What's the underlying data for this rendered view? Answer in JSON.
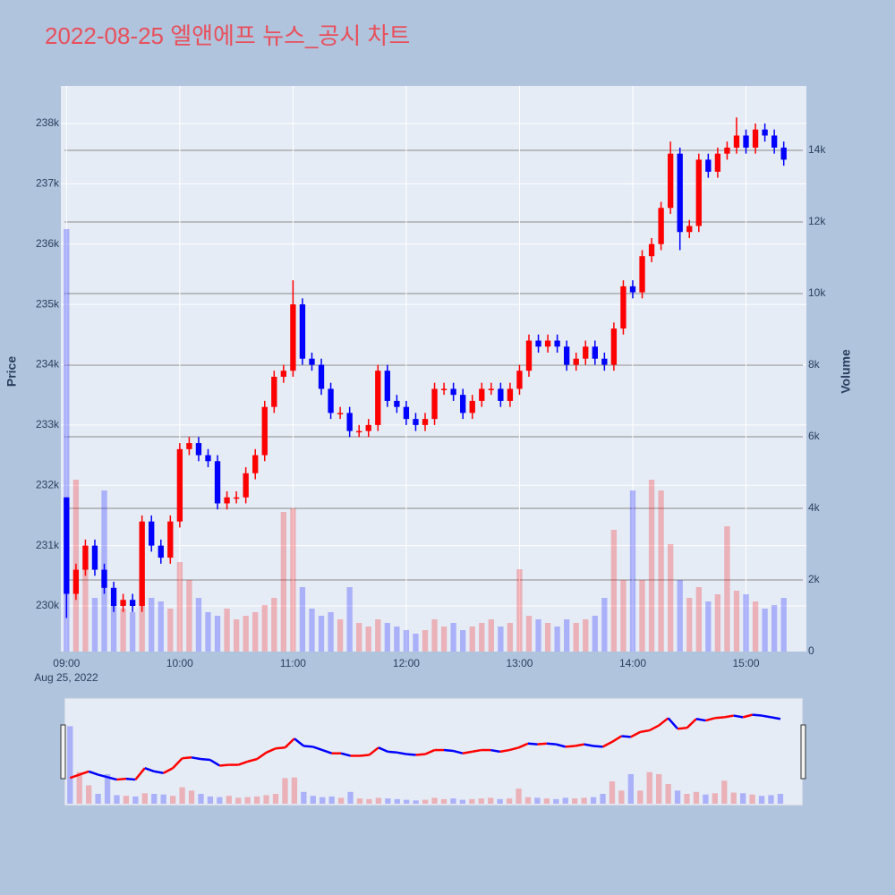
{
  "chart_data": {
    "type": "candlestick",
    "title": "2022-08-25 엘앤에프 뉴스_공시 차트",
    "y_label": "Price",
    "y2_label": "Volume",
    "x_date_label": "Aug 25, 2022",
    "up_color": "#ff0000",
    "down_color": "#0000ff",
    "xlim": [
      "2022-08-25 08:57",
      "2022-08-25 15:32"
    ],
    "xticks": [
      {
        "value": "2022-08-25 09:00",
        "label": "09:00"
      },
      {
        "value": "2022-08-25 10:00",
        "label": "10:00"
      },
      {
        "value": "2022-08-25 11:00",
        "label": "11:00"
      },
      {
        "value": "2022-08-25 12:00",
        "label": "12:00"
      },
      {
        "value": "2022-08-25 13:00",
        "label": "13:00"
      },
      {
        "value": "2022-08-25 14:00",
        "label": "14:00"
      },
      {
        "value": "2022-08-25 15:00",
        "label": "15:00"
      }
    ],
    "ylim": [
      229243,
      238623
    ],
    "yticks": [
      {
        "value": 230000,
        "label": "230k"
      },
      {
        "value": 231000,
        "label": "231k"
      },
      {
        "value": 232000,
        "label": "232k"
      },
      {
        "value": 233000,
        "label": "233k"
      },
      {
        "value": 234000,
        "label": "234k"
      },
      {
        "value": 235000,
        "label": "235k"
      },
      {
        "value": 236000,
        "label": "236k"
      },
      {
        "value": 237000,
        "label": "237k"
      },
      {
        "value": 238000,
        "label": "238k"
      }
    ],
    "y2lim": [
      0,
      15800
    ],
    "y2ticks": [
      0,
      {
        "value": 2000,
        "label": "2k"
      },
      {
        "value": 4000,
        "label": "4k"
      },
      {
        "value": 6000,
        "label": "6k"
      },
      {
        "value": 8000,
        "label": "8k"
      },
      {
        "value": 10000,
        "label": "10k"
      },
      {
        "value": 12000,
        "label": "12k"
      },
      {
        "value": 14000,
        "label": "14k"
      }
    ],
    "range_slider": true,
    "x": [
      "2022-08-25 09:00",
      "2022-08-25 09:05",
      "2022-08-25 09:10",
      "2022-08-25 09:15",
      "2022-08-25 09:20",
      "2022-08-25 09:25",
      "2022-08-25 09:30",
      "2022-08-25 09:35",
      "2022-08-25 09:40",
      "2022-08-25 09:45",
      "2022-08-25 09:50",
      "2022-08-25 09:55",
      "2022-08-25 10:00",
      "2022-08-25 10:05",
      "2022-08-25 10:10",
      "2022-08-25 10:15",
      "2022-08-25 10:20",
      "2022-08-25 10:25",
      "2022-08-25 10:30",
      "2022-08-25 10:35",
      "2022-08-25 10:40",
      "2022-08-25 10:45",
      "2022-08-25 10:50",
      "2022-08-25 10:55",
      "2022-08-25 11:00",
      "2022-08-25 11:05",
      "2022-08-25 11:10",
      "2022-08-25 11:15",
      "2022-08-25 11:20",
      "2022-08-25 11:25",
      "2022-08-25 11:30",
      "2022-08-25 11:35",
      "2022-08-25 11:40",
      "2022-08-25 11:45",
      "2022-08-25 11:50",
      "2022-08-25 11:55",
      "2022-08-25 12:00",
      "2022-08-25 12:05",
      "2022-08-25 12:10",
      "2022-08-25 12:15",
      "2022-08-25 12:20",
      "2022-08-25 12:25",
      "2022-08-25 12:30",
      "2022-08-25 12:35",
      "2022-08-25 12:40",
      "2022-08-25 12:45",
      "2022-08-25 12:50",
      "2022-08-25 12:55",
      "2022-08-25 13:00",
      "2022-08-25 13:05",
      "2022-08-25 13:10",
      "2022-08-25 13:15",
      "2022-08-25 13:20",
      "2022-08-25 13:25",
      "2022-08-25 13:30",
      "2022-08-25 13:35",
      "2022-08-25 13:40",
      "2022-08-25 13:45",
      "2022-08-25 13:50",
      "2022-08-25 13:55",
      "2022-08-25 14:00",
      "2022-08-25 14:05",
      "2022-08-25 14:10",
      "2022-08-25 14:15",
      "2022-08-25 14:20",
      "2022-08-25 14:25",
      "2022-08-25 14:30",
      "2022-08-25 14:35",
      "2022-08-25 14:40",
      "2022-08-25 14:45",
      "2022-08-25 14:50",
      "2022-08-25 14:55",
      "2022-08-25 15:00",
      "2022-08-25 15:05",
      "2022-08-25 15:10",
      "2022-08-25 15:15",
      "2022-08-25 15:20"
    ],
    "open": [
      231800,
      230200,
      230600,
      231000,
      230600,
      230300,
      230000,
      230100,
      230000,
      231400,
      231000,
      230800,
      231400,
      232600,
      232700,
      232500,
      232400,
      231700,
      231800,
      231800,
      232200,
      232500,
      233300,
      233800,
      233900,
      235000,
      234100,
      234000,
      233600,
      233200,
      233200,
      232900,
      232900,
      233000,
      233900,
      233400,
      233300,
      233100,
      233000,
      233100,
      233600,
      233600,
      233500,
      233200,
      233400,
      233600,
      233600,
      233400,
      233600,
      233900,
      234400,
      234300,
      234400,
      234300,
      234000,
      234100,
      234300,
      234100,
      234000,
      234600,
      235300,
      235200,
      235800,
      236000,
      236600,
      237500,
      236200,
      236300,
      237400,
      237200,
      237500,
      237600,
      237800,
      237600,
      237900,
      237800,
      237600
    ],
    "high": [
      231800,
      230700,
      231100,
      231100,
      230700,
      230400,
      230200,
      230200,
      231500,
      231500,
      231100,
      231500,
      232700,
      232800,
      232800,
      232600,
      232500,
      231900,
      231900,
      232300,
      232600,
      233400,
      233900,
      234000,
      235400,
      235100,
      234200,
      234100,
      233700,
      233300,
      233300,
      233000,
      233100,
      234000,
      234000,
      233500,
      233400,
      233200,
      233200,
      233700,
      233700,
      233700,
      233600,
      233500,
      233700,
      233700,
      233700,
      233700,
      234000,
      234500,
      234500,
      234500,
      234500,
      234400,
      234200,
      234400,
      234400,
      234200,
      234700,
      235400,
      235400,
      235900,
      236100,
      236700,
      237700,
      237600,
      236400,
      237500,
      237500,
      237600,
      237700,
      238100,
      237900,
      238000,
      238000,
      237900,
      237700
    ],
    "low": [
      229800,
      230100,
      230500,
      230500,
      230200,
      229900,
      229900,
      229900,
      229900,
      230900,
      230700,
      230700,
      231300,
      232500,
      232400,
      232300,
      231600,
      231600,
      231700,
      231700,
      232100,
      232400,
      233200,
      233700,
      233800,
      234000,
      233900,
      233500,
      233100,
      233100,
      232800,
      232800,
      232800,
      232900,
      233300,
      233200,
      233000,
      232900,
      232900,
      233000,
      233500,
      233400,
      233100,
      233100,
      233300,
      233500,
      233300,
      233300,
      233500,
      233800,
      234200,
      234200,
      234200,
      233900,
      233900,
      234000,
      234000,
      233900,
      233900,
      234500,
      235100,
      235100,
      235700,
      235900,
      236500,
      235900,
      236100,
      236200,
      237100,
      237100,
      237400,
      237500,
      237500,
      237500,
      237700,
      237500,
      237300
    ],
    "close": [
      230200,
      230600,
      231000,
      230600,
      230300,
      230000,
      230100,
      230000,
      231400,
      231000,
      230800,
      231400,
      232600,
      232700,
      232500,
      232400,
      231700,
      231800,
      231800,
      232200,
      232500,
      233300,
      233800,
      233900,
      235000,
      234100,
      234000,
      233600,
      233200,
      233200,
      232900,
      232900,
      233000,
      233900,
      233400,
      233300,
      233100,
      233000,
      233100,
      233600,
      233600,
      233500,
      233200,
      233400,
      233600,
      233600,
      233400,
      233600,
      233900,
      234400,
      234300,
      234400,
      234300,
      234000,
      234100,
      234300,
      234100,
      234000,
      234600,
      235300,
      235200,
      235800,
      236000,
      236600,
      237500,
      236200,
      236300,
      237400,
      237200,
      237500,
      237600,
      237800,
      237600,
      237900,
      237800,
      237600,
      237400
    ],
    "volume": [
      11800,
      4800,
      2800,
      1500,
      4500,
      1300,
      1200,
      1100,
      1600,
      1500,
      1400,
      1200,
      2500,
      2000,
      1500,
      1100,
      1000,
      1200,
      900,
      1000,
      1100,
      1300,
      1500,
      3900,
      4000,
      1800,
      1200,
      1000,
      1100,
      900,
      1800,
      800,
      700,
      900,
      800,
      700,
      600,
      500,
      600,
      900,
      700,
      800,
      600,
      700,
      800,
      900,
      700,
      800,
      2300,
      1000,
      900,
      800,
      700,
      900,
      800,
      900,
      1000,
      1500,
      3400,
      2000,
      4500,
      2000,
      4800,
      4500,
      3000,
      2000,
      1500,
      1800,
      1400,
      1600,
      3500,
      1700,
      1600,
      1400,
      1200,
      1300,
      1500
    ]
  }
}
